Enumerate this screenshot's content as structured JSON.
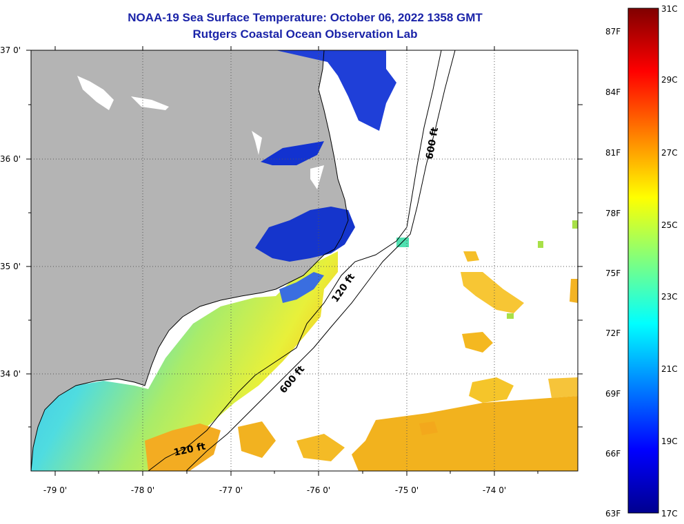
{
  "header": {
    "title_line1": "NOAA-19 Sea Surface Temperature:  October 06, 2022 1358 GMT",
    "title_line2": "Rutgers Coastal Ocean Observation Lab"
  },
  "axes": {
    "lat_labels": [
      "37 0'",
      "36 0'",
      "35 0'",
      "34 0'"
    ],
    "lon_labels": [
      "-79 0'",
      "-78 0'",
      "-77 0'",
      "-76 0'",
      "-75 0'",
      "-74 0'"
    ]
  },
  "contours": {
    "shallow_label": "120 ft",
    "deep_label": "600 ft"
  },
  "colorbar": {
    "fahrenheit_labels": [
      "87F",
      "84F",
      "81F",
      "78F",
      "75F",
      "72F",
      "69F",
      "66F",
      "63F"
    ],
    "celsius_labels": [
      "31C",
      "29C",
      "27C",
      "25C",
      "23C",
      "21C",
      "19C",
      "17C"
    ],
    "range_celsius": [
      17,
      31
    ],
    "colormap": "jet"
  },
  "colors": {
    "land": "#b4b4b4",
    "cloud_nodata": "#ffffff",
    "title": "#1a23a8"
  }
}
